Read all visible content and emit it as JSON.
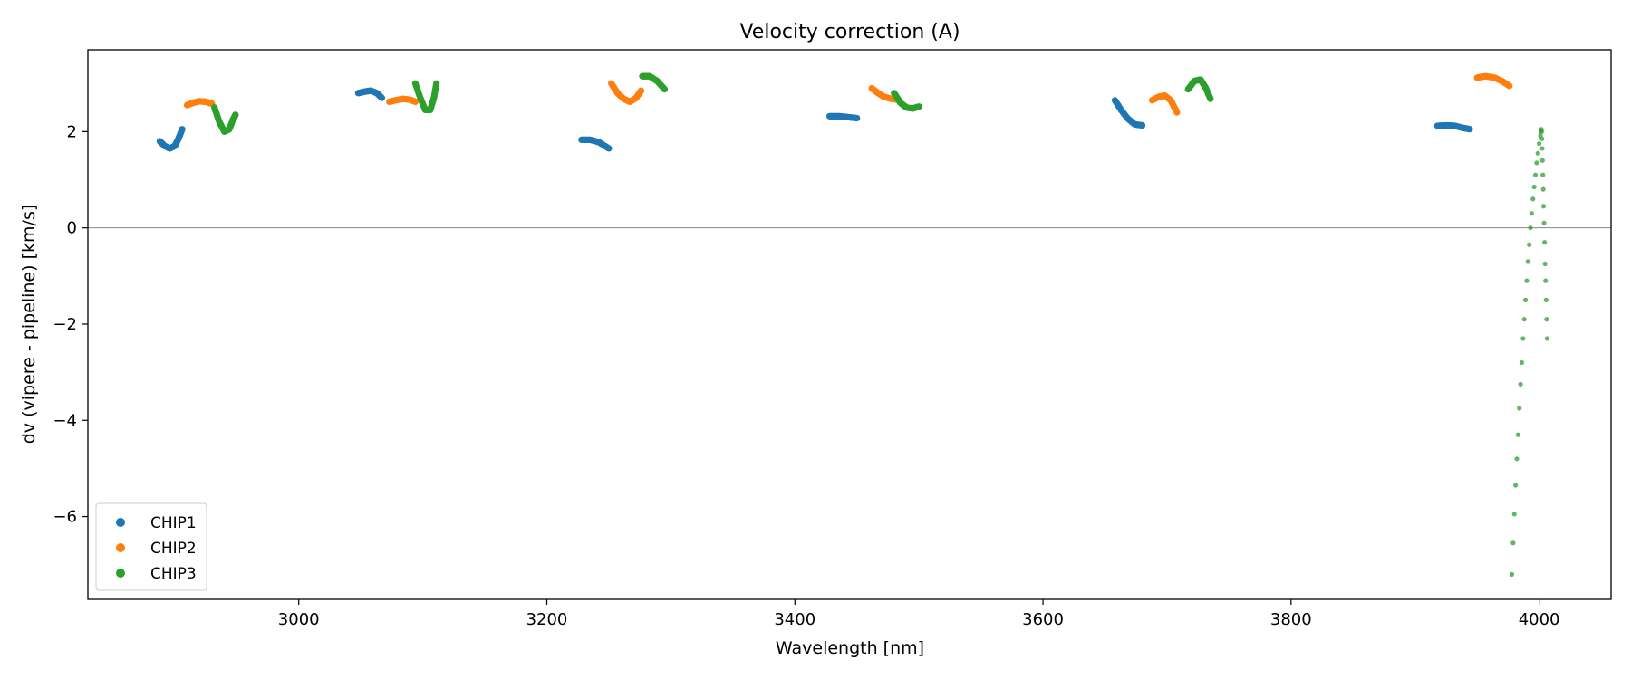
{
  "chart_data": {
    "type": "scatter",
    "title": "Velocity correction (A)",
    "xlabel": "Wavelength [nm]",
    "ylabel": "dv (vipere - pipeline) [km/s]",
    "xlim": [
      2830,
      4058
    ],
    "ylim": [
      -7.72,
      3.7
    ],
    "xticks": [
      3000,
      3200,
      3400,
      3600,
      3800,
      4000
    ],
    "yticks": [
      -6,
      -4,
      -2,
      0,
      2
    ],
    "zero_line": 0,
    "grid": false,
    "legend_position": "lower-left",
    "series": [
      {
        "name": "CHIP1",
        "color": "#1f77b4",
        "segments": [
          [
            [
              2888,
              1.8
            ],
            [
              2892,
              1.7
            ],
            [
              2896,
              1.65
            ],
            [
              2900,
              1.7
            ],
            [
              2903,
              1.85
            ],
            [
              2906,
              2.05
            ]
          ],
          [
            [
              3048,
              2.8
            ],
            [
              3053,
              2.83
            ],
            [
              3058,
              2.85
            ],
            [
              3063,
              2.8
            ],
            [
              3067,
              2.7
            ]
          ],
          [
            [
              3228,
              1.83
            ],
            [
              3235,
              1.83
            ],
            [
              3242,
              1.78
            ],
            [
              3250,
              1.65
            ]
          ],
          [
            [
              3428,
              2.32
            ],
            [
              3436,
              2.32
            ],
            [
              3443,
              2.3
            ],
            [
              3450,
              2.28
            ]
          ],
          [
            [
              3658,
              2.65
            ],
            [
              3663,
              2.45
            ],
            [
              3668,
              2.28
            ],
            [
              3674,
              2.15
            ],
            [
              3680,
              2.13
            ]
          ],
          [
            [
              3918,
              2.12
            ],
            [
              3925,
              2.13
            ],
            [
              3932,
              2.12
            ],
            [
              3938,
              2.08
            ],
            [
              3944,
              2.05
            ]
          ]
        ]
      },
      {
        "name": "CHIP2",
        "color": "#ff7f0e",
        "segments": [
          [
            [
              2910,
              2.55
            ],
            [
              2915,
              2.6
            ],
            [
              2920,
              2.63
            ],
            [
              2925,
              2.62
            ],
            [
              2930,
              2.58
            ]
          ],
          [
            [
              3073,
              2.62
            ],
            [
              3078,
              2.65
            ],
            [
              3084,
              2.68
            ],
            [
              3090,
              2.66
            ],
            [
              3094,
              2.62
            ]
          ],
          [
            [
              3252,
              3.0
            ],
            [
              3257,
              2.8
            ],
            [
              3262,
              2.68
            ],
            [
              3267,
              2.62
            ],
            [
              3272,
              2.7
            ],
            [
              3276,
              2.85
            ]
          ],
          [
            [
              3462,
              2.9
            ],
            [
              3467,
              2.8
            ],
            [
              3472,
              2.72
            ],
            [
              3478,
              2.68
            ],
            [
              3484,
              2.66
            ]
          ],
          [
            [
              3688,
              2.65
            ],
            [
              3693,
              2.72
            ],
            [
              3698,
              2.75
            ],
            [
              3703,
              2.65
            ],
            [
              3708,
              2.4
            ]
          ],
          [
            [
              3950,
              3.12
            ],
            [
              3957,
              3.15
            ],
            [
              3964,
              3.12
            ],
            [
              3970,
              3.05
            ],
            [
              3976,
              2.95
            ]
          ]
        ]
      },
      {
        "name": "CHIP3",
        "color": "#2ca02c",
        "segments": [
          [
            [
              2932,
              2.5
            ],
            [
              2936,
              2.2
            ],
            [
              2940,
              2.0
            ],
            [
              2944,
              2.05
            ],
            [
              2947,
              2.25
            ],
            [
              2949,
              2.35
            ]
          ],
          [
            [
              3094,
              3.0
            ],
            [
              3098,
              2.7
            ],
            [
              3102,
              2.45
            ],
            [
              3106,
              2.45
            ],
            [
              3109,
              2.7
            ],
            [
              3111,
              3.0
            ]
          ],
          [
            [
              3277,
              3.15
            ],
            [
              3283,
              3.15
            ],
            [
              3289,
              3.05
            ],
            [
              3295,
              2.88
            ]
          ],
          [
            [
              3480,
              2.8
            ],
            [
              3485,
              2.6
            ],
            [
              3490,
              2.5
            ],
            [
              3495,
              2.48
            ],
            [
              3500,
              2.52
            ]
          ],
          [
            [
              3717,
              2.88
            ],
            [
              3722,
              3.05
            ],
            [
              3727,
              3.08
            ],
            [
              3731,
              2.92
            ],
            [
              3735,
              2.68
            ]
          ],
          [
            [
              3978,
              -7.2
            ],
            [
              3979,
              -6.55
            ],
            [
              3980,
              -5.95
            ],
            [
              3981,
              -5.35
            ],
            [
              3982,
              -4.8
            ],
            [
              3983,
              -4.3
            ],
            [
              3984,
              -3.75
            ],
            [
              3985,
              -3.25
            ],
            [
              3986,
              -2.8
            ],
            [
              3987,
              -2.3
            ],
            [
              3988,
              -1.9
            ],
            [
              3989,
              -1.5
            ],
            [
              3990,
              -1.1
            ],
            [
              3991,
              -0.7
            ],
            [
              3992,
              -0.35
            ],
            [
              3993,
              0.0
            ],
            [
              3994,
              0.3
            ],
            [
              3995,
              0.6
            ],
            [
              3996,
              0.85
            ],
            [
              3997,
              1.1
            ],
            [
              3998,
              1.35
            ],
            [
              3999,
              1.55
            ],
            [
              4000,
              1.75
            ],
            [
              4001,
              1.92
            ],
            [
              4001.5,
              2.02
            ],
            [
              4001.8,
              2.05
            ],
            [
              4002,
              2.0
            ],
            [
              4002.3,
              1.85
            ],
            [
              4002.5,
              1.65
            ],
            [
              4002.7,
              1.4
            ],
            [
              4003,
              1.1
            ],
            [
              4003.3,
              0.8
            ],
            [
              4003.6,
              0.45
            ],
            [
              4004,
              0.1
            ],
            [
              4004.4,
              -0.3
            ],
            [
              4004.8,
              -0.75
            ],
            [
              4005.2,
              -1.1
            ],
            [
              4005.6,
              -1.5
            ],
            [
              4006,
              -1.9
            ],
            [
              4006.4,
              -2.3
            ]
          ]
        ]
      }
    ]
  }
}
